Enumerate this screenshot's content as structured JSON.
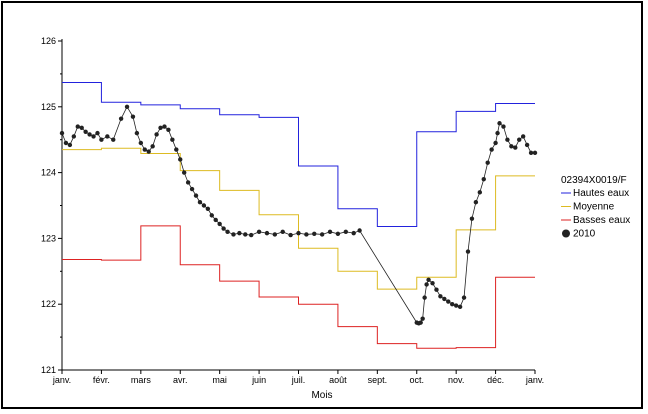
{
  "chart_data": {
    "type": "line",
    "title": "",
    "xlabel": "Mois",
    "ylabel": "",
    "ylim": [
      121,
      126
    ],
    "yticks": [
      121,
      122,
      123,
      124,
      125,
      126
    ],
    "month_labels": [
      "janv.",
      "févr.",
      "mars",
      "avr.",
      "mai",
      "juin",
      "juil.",
      "août",
      "sept.",
      "oct.",
      "nov.",
      "déc.",
      "janv."
    ],
    "legend_title": "02394X0019/F",
    "legend_position": "right",
    "grid": false,
    "series": [
      {
        "name": "Hautes eaux",
        "color": "#2222dd",
        "style": "step",
        "values": [
          125.37,
          125.07,
          125.03,
          124.97,
          124.88,
          124.84,
          124.1,
          123.45,
          123.18,
          124.62,
          124.93,
          125.05
        ]
      },
      {
        "name": "Moyenne",
        "color": "#ddbb22",
        "style": "step",
        "values": [
          124.35,
          124.37,
          124.29,
          124.03,
          123.73,
          123.36,
          122.85,
          122.5,
          122.23,
          122.41,
          123.13,
          123.95
        ]
      },
      {
        "name": "Basses eaux",
        "color": "#dd2222",
        "style": "step",
        "values": [
          122.68,
          122.67,
          123.19,
          122.6,
          122.35,
          122.11,
          122.0,
          121.66,
          121.4,
          121.33,
          121.34,
          122.41
        ]
      },
      {
        "name": "2010",
        "color": "#222222",
        "style": "markers",
        "x": [
          0,
          0.1,
          0.2,
          0.3,
          0.4,
          0.5,
          0.6,
          0.7,
          0.8,
          0.9,
          1.0,
          1.15,
          1.3,
          1.5,
          1.65,
          1.8,
          1.9,
          2.0,
          2.1,
          2.2,
          2.3,
          2.4,
          2.5,
          2.6,
          2.7,
          2.8,
          2.9,
          3.0,
          3.1,
          3.2,
          3.3,
          3.4,
          3.5,
          3.6,
          3.7,
          3.8,
          3.9,
          4.0,
          4.1,
          4.2,
          4.35,
          4.5,
          4.65,
          4.8,
          5.0,
          5.2,
          5.4,
          5.6,
          5.8,
          6.0,
          6.2,
          6.4,
          6.6,
          6.8,
          7.0,
          7.2,
          7.4,
          7.55,
          9.0,
          9.05,
          9.1,
          9.15,
          9.2,
          9.25,
          9.3,
          9.4,
          9.5,
          9.6,
          9.7,
          9.8,
          9.9,
          10.0,
          10.1,
          10.2,
          10.3,
          10.4,
          10.5,
          10.6,
          10.7,
          10.8,
          10.9,
          11.0,
          11.05,
          11.1,
          11.2,
          11.3,
          11.4,
          11.5,
          11.6,
          11.7,
          11.8,
          11.9,
          12.0
        ],
        "values": [
          124.6,
          124.45,
          124.42,
          124.55,
          124.7,
          124.68,
          124.62,
          124.58,
          124.55,
          124.6,
          124.5,
          124.55,
          124.5,
          124.82,
          125.0,
          124.85,
          124.6,
          124.45,
          124.35,
          124.32,
          124.4,
          124.58,
          124.68,
          124.7,
          124.65,
          124.5,
          124.35,
          124.2,
          124.0,
          123.85,
          123.75,
          123.65,
          123.55,
          123.5,
          123.45,
          123.35,
          123.28,
          123.22,
          123.15,
          123.1,
          123.06,
          123.08,
          123.06,
          123.05,
          123.1,
          123.08,
          123.06,
          123.1,
          123.05,
          123.08,
          123.06,
          123.07,
          123.06,
          123.1,
          123.07,
          123.1,
          123.08,
          123.12,
          121.72,
          121.71,
          121.72,
          121.78,
          122.1,
          122.3,
          122.37,
          122.32,
          122.22,
          122.12,
          122.08,
          122.04,
          122.0,
          121.98,
          121.96,
          122.1,
          122.8,
          123.3,
          123.55,
          123.7,
          123.9,
          124.15,
          124.35,
          124.45,
          124.6,
          124.75,
          124.7,
          124.5,
          124.4,
          124.38,
          124.5,
          124.55,
          124.42,
          124.3,
          124.3
        ]
      }
    ]
  }
}
